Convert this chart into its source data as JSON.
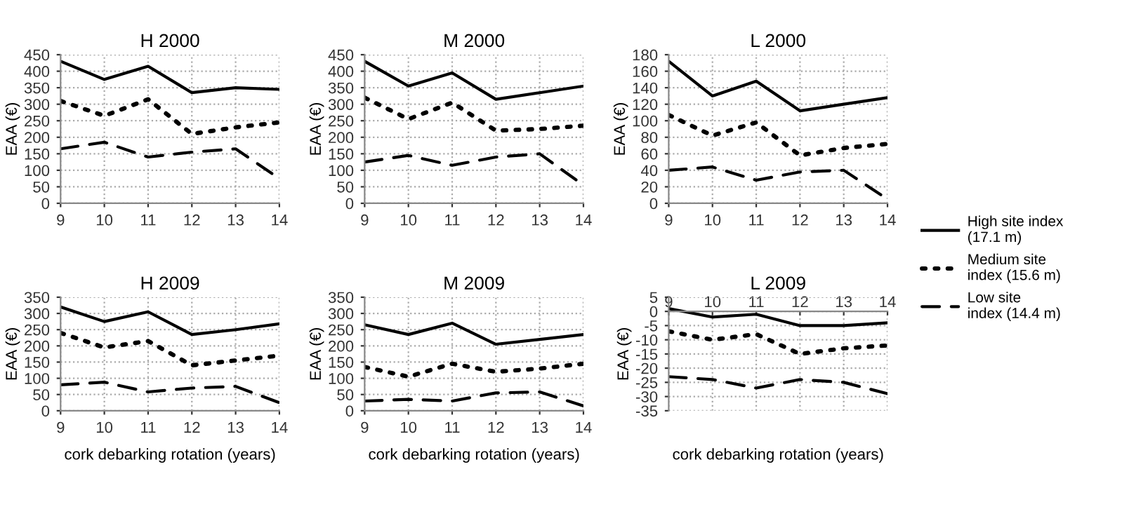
{
  "chart_data": [
    {
      "type": "line",
      "title": "H 2000",
      "ylabel": "EAA (€)",
      "x": [
        9,
        10,
        11,
        12,
        13,
        14
      ],
      "xlim": [
        9,
        14
      ],
      "xticks": [
        9,
        10,
        11,
        12,
        13,
        14
      ],
      "ylim": [
        0,
        450
      ],
      "yticks": [
        0,
        50,
        100,
        150,
        200,
        250,
        300,
        350,
        400,
        450
      ],
      "grid": true,
      "marker": "none",
      "legend": "right",
      "series": [
        {
          "name": "High site index\n(17.1 m)",
          "color": "#000000",
          "line_style": "solid",
          "values": [
            430,
            375,
            415,
            335,
            350,
            345
          ]
        },
        {
          "name": "Medium site\nindex (15.6 m)",
          "color": "#000000",
          "line_style": "dotted",
          "values": [
            310,
            265,
            315,
            210,
            230,
            245
          ]
        },
        {
          "name": "Low site\nindex (14.4 m)",
          "color": "#000000",
          "line_style": "dashed",
          "values": [
            165,
            185,
            140,
            155,
            165,
            75
          ]
        }
      ]
    },
    {
      "type": "line",
      "title": "M 2000",
      "ylabel": "EAA (€)",
      "x": [
        9,
        10,
        11,
        12,
        13,
        14
      ],
      "xlim": [
        9,
        14
      ],
      "xticks": [
        9,
        10,
        11,
        12,
        13,
        14
      ],
      "ylim": [
        0,
        450
      ],
      "yticks": [
        0,
        50,
        100,
        150,
        200,
        250,
        300,
        350,
        400,
        450
      ],
      "grid": true,
      "marker": "none",
      "series": [
        {
          "color": "#000000",
          "line_style": "solid",
          "values": [
            430,
            355,
            395,
            315,
            335,
            355
          ]
        },
        {
          "color": "#000000",
          "line_style": "dotted",
          "values": [
            320,
            255,
            305,
            220,
            225,
            235
          ]
        },
        {
          "color": "#000000",
          "line_style": "dashed",
          "values": [
            125,
            145,
            115,
            140,
            150,
            55
          ]
        }
      ]
    },
    {
      "type": "line",
      "title": "L 2000",
      "ylabel": "EAA (€)",
      "x": [
        9,
        10,
        11,
        12,
        13,
        14
      ],
      "xlim": [
        9,
        14
      ],
      "xticks": [
        9,
        10,
        11,
        12,
        13,
        14
      ],
      "ylim": [
        0,
        180
      ],
      "yticks": [
        0,
        20,
        40,
        60,
        80,
        100,
        120,
        140,
        160,
        180
      ],
      "grid": true,
      "marker": "none",
      "series": [
        {
          "color": "#000000",
          "line_style": "solid",
          "values": [
            172,
            130,
            148,
            112,
            120,
            128
          ]
        },
        {
          "color": "#000000",
          "line_style": "dotted",
          "values": [
            107,
            82,
            98,
            58,
            67,
            72
          ]
        },
        {
          "color": "#000000",
          "line_style": "dashed",
          "values": [
            40,
            44,
            28,
            38,
            40,
            5
          ]
        }
      ]
    },
    {
      "type": "line",
      "title": "H 2009",
      "ylabel": "EAA (€)",
      "xlabel": "cork debarking rotation (years)",
      "x": [
        9,
        10,
        11,
        12,
        13,
        14
      ],
      "xlim": [
        9,
        14
      ],
      "xticks": [
        9,
        10,
        11,
        12,
        13,
        14
      ],
      "ylim": [
        0,
        350
      ],
      "yticks": [
        0,
        50,
        100,
        150,
        200,
        250,
        300,
        350
      ],
      "grid": true,
      "marker": "none",
      "series": [
        {
          "color": "#000000",
          "line_style": "solid",
          "values": [
            320,
            275,
            305,
            235,
            250,
            268
          ]
        },
        {
          "color": "#000000",
          "line_style": "dotted",
          "values": [
            240,
            195,
            215,
            140,
            155,
            170
          ]
        },
        {
          "color": "#000000",
          "line_style": "dashed",
          "values": [
            80,
            88,
            58,
            70,
            75,
            25
          ]
        }
      ]
    },
    {
      "type": "line",
      "title": "M 2009",
      "ylabel": "EAA (€)",
      "xlabel": "cork debarking rotation (years)",
      "x": [
        9,
        10,
        11,
        12,
        13,
        14
      ],
      "xlim": [
        9,
        14
      ],
      "xticks": [
        9,
        10,
        11,
        12,
        13,
        14
      ],
      "ylim": [
        0,
        350
      ],
      "yticks": [
        0,
        50,
        100,
        150,
        200,
        250,
        300,
        350
      ],
      "grid": true,
      "marker": "none",
      "series": [
        {
          "color": "#000000",
          "line_style": "solid",
          "values": [
            265,
            235,
            270,
            205,
            220,
            235
          ]
        },
        {
          "color": "#000000",
          "line_style": "dotted",
          "values": [
            135,
            105,
            145,
            120,
            130,
            145
          ]
        },
        {
          "color": "#000000",
          "line_style": "dashed",
          "values": [
            30,
            35,
            30,
            55,
            58,
            15
          ]
        }
      ]
    },
    {
      "type": "line",
      "title": "L 2009",
      "ylabel": "EAA (€)",
      "xlabel": "cork debarking rotation (years)",
      "x": [
        9,
        10,
        11,
        12,
        13,
        14
      ],
      "xlim": [
        9,
        14
      ],
      "xticks": [
        9,
        10,
        11,
        12,
        13,
        14
      ],
      "ylim": [
        -35,
        5
      ],
      "yticks": [
        -35,
        -30,
        -25,
        -20,
        -15,
        -10,
        -5,
        0,
        5
      ],
      "grid": true,
      "marker": "none",
      "series": [
        {
          "color": "#000000",
          "line_style": "solid",
          "values": [
            1,
            -2,
            -1,
            -5,
            -5,
            -4
          ]
        },
        {
          "color": "#000000",
          "line_style": "dotted",
          "values": [
            -7,
            -10,
            -8,
            -15,
            -13,
            -12
          ]
        },
        {
          "color": "#000000",
          "line_style": "dashed",
          "values": [
            -23,
            -24,
            -27,
            -24,
            -25,
            -29
          ]
        }
      ]
    }
  ]
}
